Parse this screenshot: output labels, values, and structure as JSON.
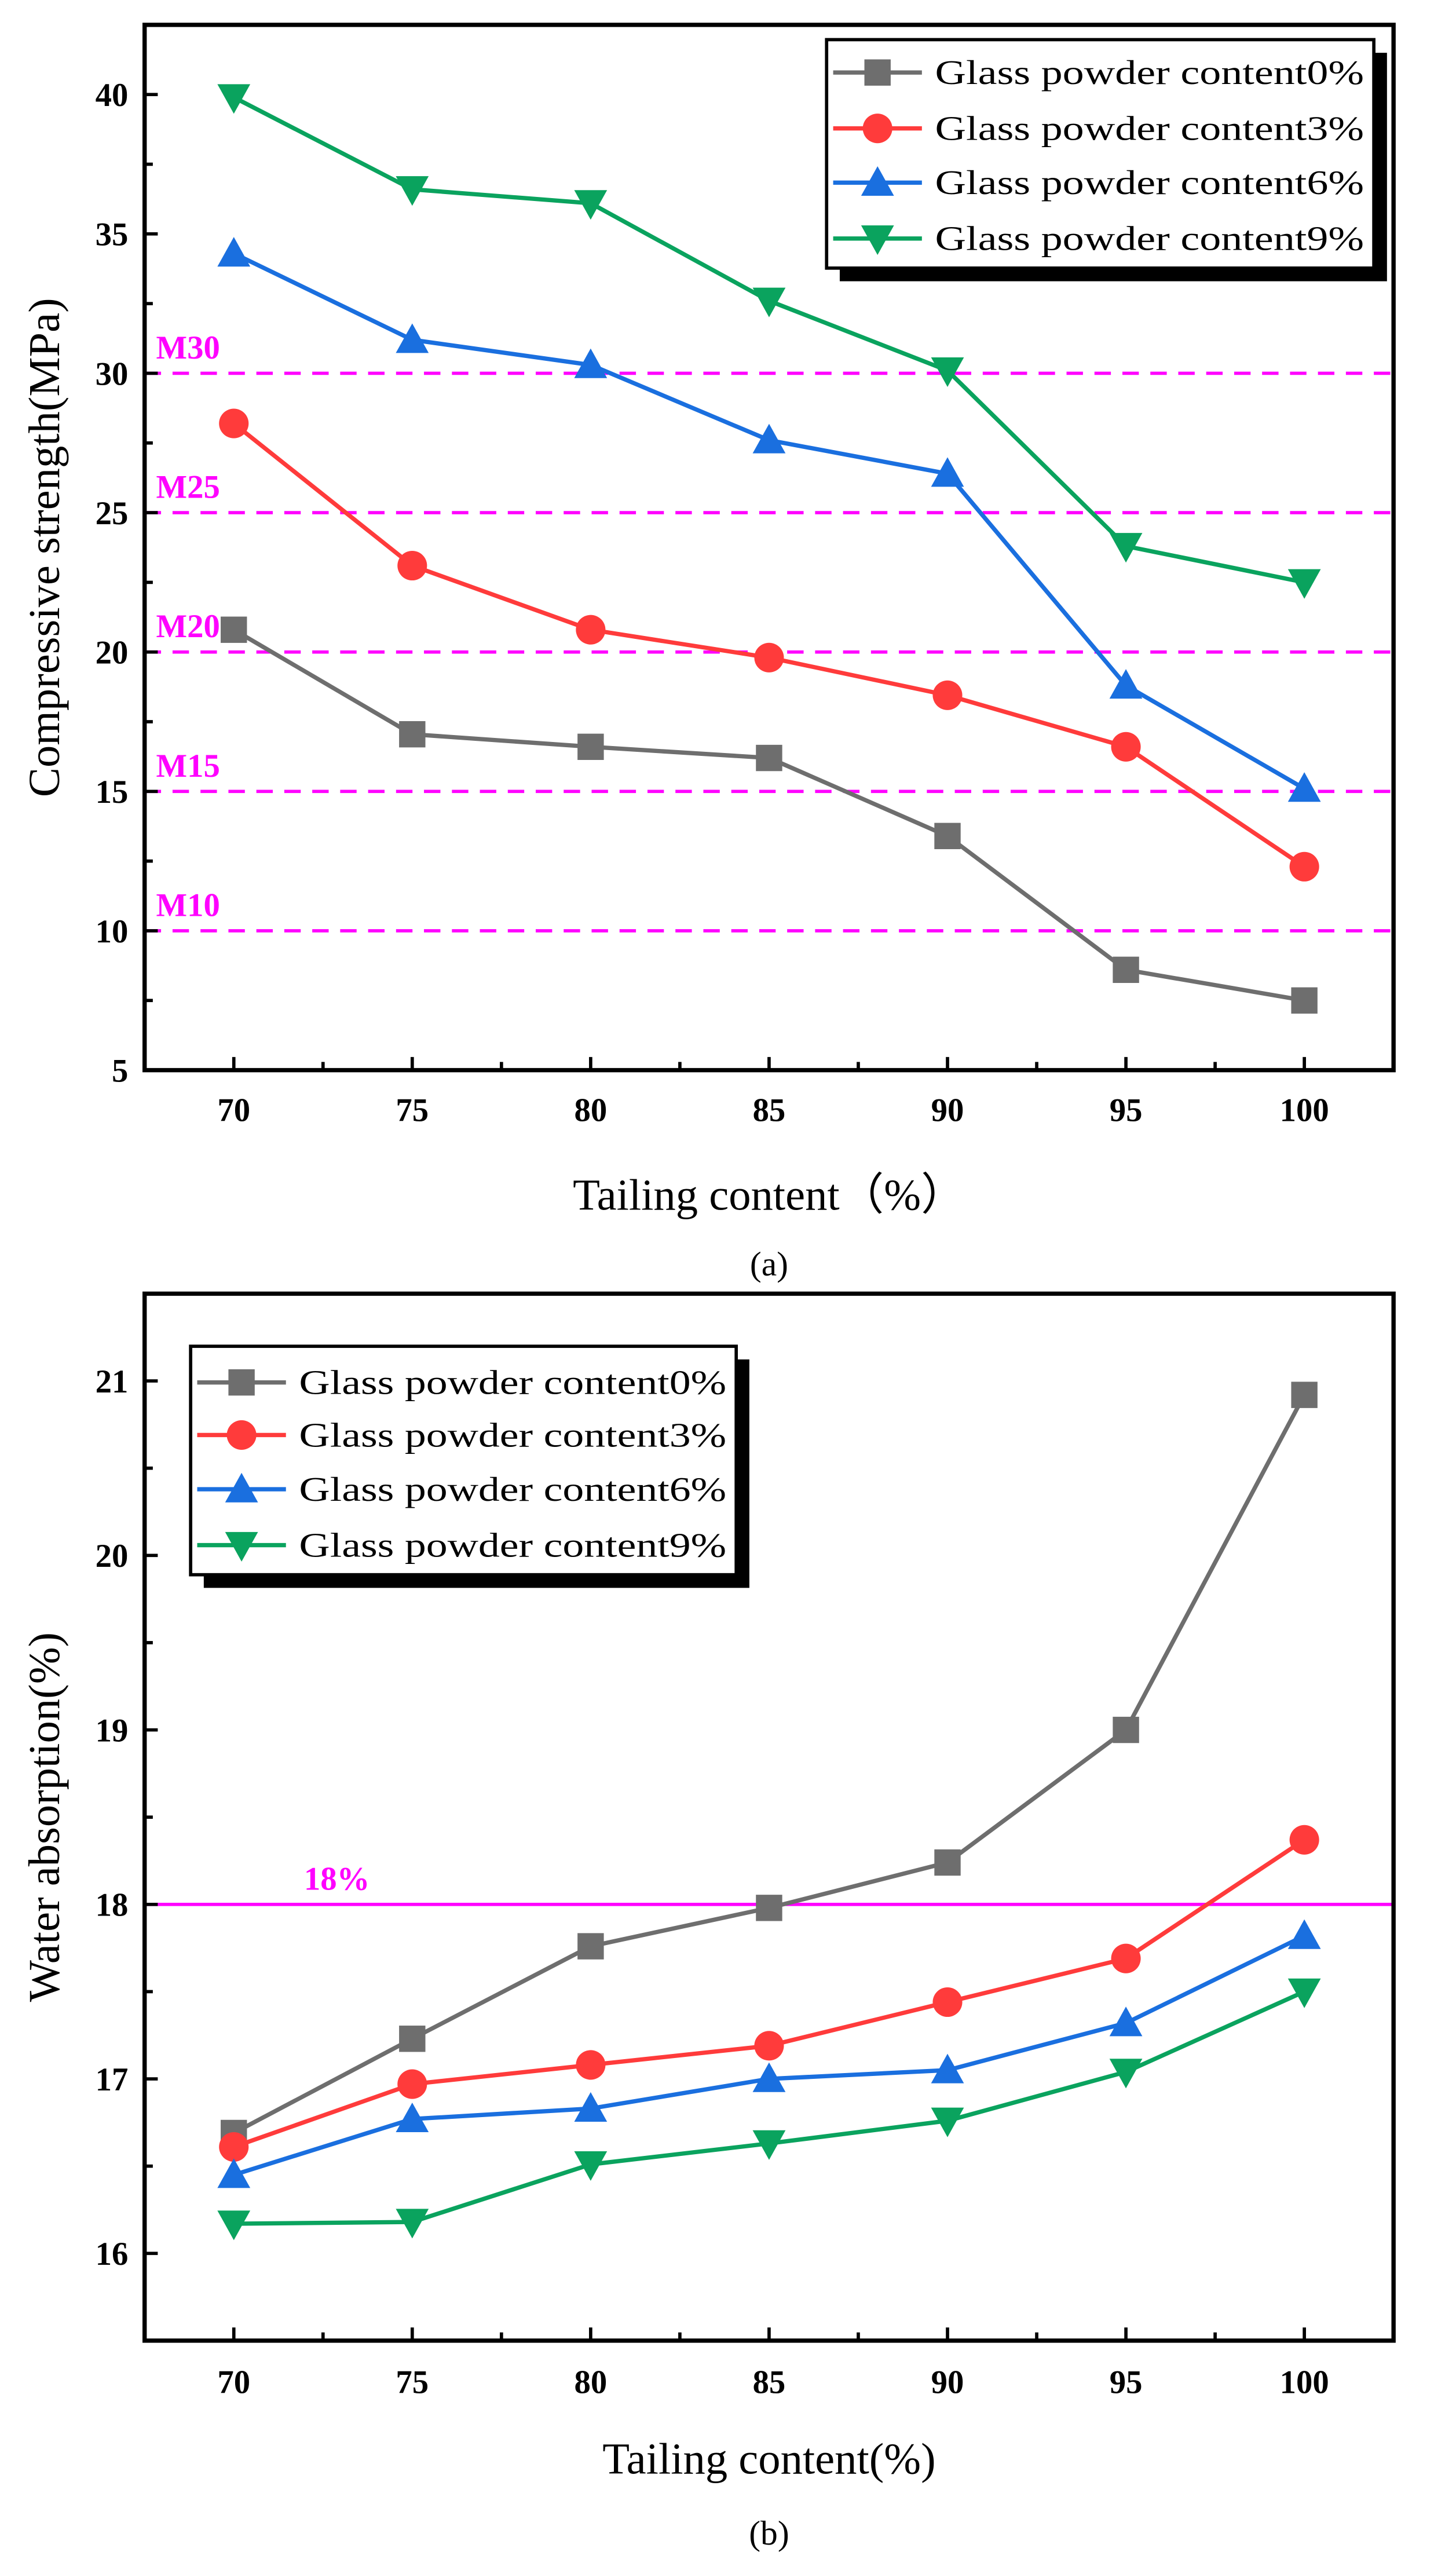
{
  "colors": {
    "s0": "#6e6e6e",
    "s1": "#ff3b3b",
    "s2": "#1a6fdf",
    "s3": "#0aa35e",
    "ref": "#ff00ff"
  },
  "chart_data": [
    {
      "type": "line",
      "caption": "(a)",
      "xlabel": "Tailing content（%）",
      "ylabel": "Compressive strength(MPa)",
      "xlim": [
        67.5,
        102.5
      ],
      "ylim": [
        5,
        42.5
      ],
      "x": [
        70,
        75,
        80,
        85,
        90,
        95,
        100
      ],
      "xticks": [
        "70",
        "75",
        "80",
        "85",
        "90",
        "95",
        "100"
      ],
      "yticks": [
        "5",
        "10",
        "15",
        "20",
        "25",
        "30",
        "35",
        "40"
      ],
      "legend_position": "top-right",
      "series": [
        {
          "name": "Glass powder content0%",
          "marker": "square",
          "values": [
            20.8,
            17.05,
            16.6,
            16.2,
            13.4,
            8.6,
            7.5
          ]
        },
        {
          "name": "Glass powder content3%",
          "marker": "circle",
          "values": [
            28.2,
            23.1,
            20.8,
            19.8,
            18.45,
            16.6,
            12.3
          ]
        },
        {
          "name": "Glass powder content6%",
          "marker": "triangle-up",
          "values": [
            34.3,
            31.2,
            30.3,
            27.6,
            26.4,
            18.8,
            15.1
          ]
        },
        {
          "name": "Glass powder content9%",
          "marker": "triangle-down",
          "values": [
            39.9,
            36.6,
            36.1,
            32.6,
            30.1,
            23.8,
            22.5
          ]
        }
      ],
      "reference_lines": [
        {
          "label": "M10",
          "value": 10,
          "style": "dashed"
        },
        {
          "label": "M15",
          "value": 15,
          "style": "dashed"
        },
        {
          "label": "M20",
          "value": 20,
          "style": "dashed"
        },
        {
          "label": "M25",
          "value": 25,
          "style": "dashed"
        },
        {
          "label": "M30",
          "value": 30,
          "style": "dashed"
        }
      ]
    },
    {
      "type": "line",
      "caption": "(b)",
      "xlabel": "Tailing content(%)",
      "ylabel": "Water absorption(%)",
      "xlim": [
        67.5,
        102.5
      ],
      "ylim": [
        15.5,
        21.5
      ],
      "x": [
        70,
        75,
        80,
        85,
        90,
        95,
        100
      ],
      "xticks": [
        "70",
        "75",
        "80",
        "85",
        "90",
        "95",
        "100"
      ],
      "yticks": [
        "16",
        "17",
        "18",
        "19",
        "20",
        "21"
      ],
      "legend_position": "top-left",
      "series": [
        {
          "name": "Glass powder content0%",
          "marker": "square",
          "values": [
            16.69,
            17.23,
            17.76,
            17.98,
            18.24,
            19.0,
            20.92
          ]
        },
        {
          "name": "Glass powder content3%",
          "marker": "circle",
          "values": [
            16.61,
            16.97,
            17.08,
            17.19,
            17.44,
            17.69,
            18.37
          ]
        },
        {
          "name": "Glass powder content6%",
          "marker": "triangle-up",
          "values": [
            16.45,
            16.77,
            16.83,
            17.0,
            17.05,
            17.32,
            17.82
          ]
        },
        {
          "name": "Glass powder content9%",
          "marker": "triangle-down",
          "values": [
            16.17,
            16.18,
            16.51,
            16.63,
            16.76,
            17.04,
            17.5
          ]
        }
      ],
      "reference_lines": [
        {
          "label": "18%",
          "value": 18,
          "style": "solid"
        }
      ]
    }
  ]
}
